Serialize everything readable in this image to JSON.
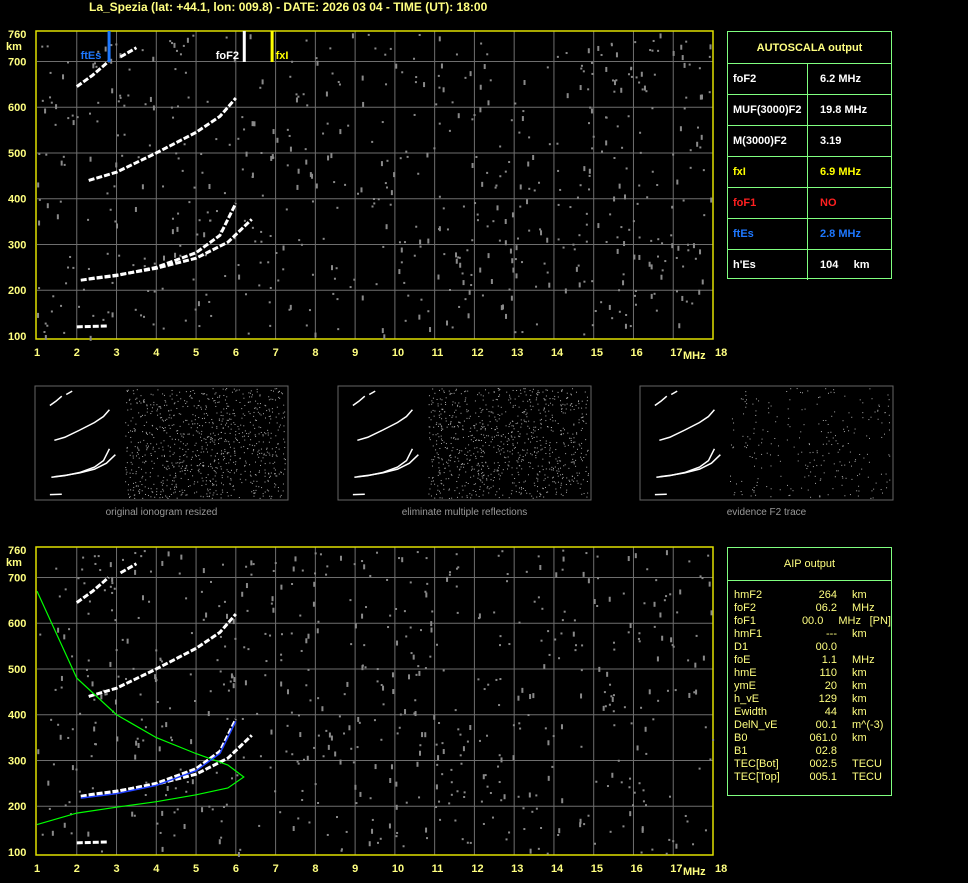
{
  "title": "La_Spezia (lat: +44.1, lon: 009.8) - DATE: 2026 03 04 - TIME (UT): 18:00",
  "chart_data": [
    {
      "type": "scatter",
      "title": "",
      "xlabel": "MHz",
      "ylabel": "km",
      "xlim": [
        1,
        18
      ],
      "ylim": [
        100,
        760
      ],
      "xticks": [
        "1",
        "2",
        "3",
        "4",
        "5",
        "6",
        "7",
        "8",
        "9",
        "10",
        "11",
        "12",
        "13",
        "14",
        "15",
        "16",
        "17",
        "18"
      ],
      "yticks": [
        "100",
        "200",
        "300",
        "400",
        "500",
        "600",
        "700",
        "760"
      ],
      "grid": true,
      "markers": [
        {
          "label": "ftEs",
          "freq": 2.8,
          "color": "#1e78ff"
        },
        {
          "label": "foF2",
          "freq": 6.2,
          "color": "#ffffff"
        },
        {
          "label": "fxI",
          "freq": 6.9,
          "color": "#ffff00"
        }
      ],
      "traces": [
        {
          "x": [
            2.1,
            3,
            4,
            5,
            5.6,
            6.0
          ],
          "y": [
            222,
            232,
            250,
            282,
            320,
            390
          ]
        },
        {
          "x": [
            2.3,
            3,
            4,
            5,
            5.8,
            6.4
          ],
          "y": [
            225,
            233,
            248,
            270,
            305,
            355
          ]
        },
        {
          "x": [
            2.3,
            3,
            4,
            5,
            5.6,
            6.0
          ],
          "y": [
            440,
            458,
            500,
            545,
            580,
            620
          ]
        },
        {
          "x": [
            2.0,
            2.8
          ],
          "y": [
            120,
            122
          ]
        },
        {
          "x": [
            2.0,
            2.4,
            2.8
          ],
          "y": [
            645,
            670,
            700
          ]
        },
        {
          "x": [
            3.1,
            3.5
          ],
          "y": [
            710,
            730
          ]
        }
      ]
    },
    {
      "type": "scatter",
      "title": "",
      "xlabel": "MHz",
      "ylabel": "km",
      "xlim": [
        1,
        18
      ],
      "ylim": [
        100,
        760
      ],
      "profile": {
        "color": "#00ff00",
        "x": [
          1,
          2,
          3,
          4,
          5,
          5.8,
          6.2,
          5.8,
          5,
          4,
          3,
          2,
          1
        ],
        "y": [
          670,
          480,
          400,
          350,
          315,
          290,
          264,
          240,
          225,
          210,
          198,
          185,
          160
        ]
      }
    }
  ],
  "thumbnails": [
    "original ionogram resized",
    "eliminate multiple reflections",
    "evidence F2 trace"
  ],
  "autoscala": {
    "title": "AUTOSCALA output",
    "rows": [
      {
        "k": "foF2",
        "v": "6.2 MHz",
        "color": "#ffffff"
      },
      {
        "k": "MUF(3000)F2",
        "v": "19.8 MHz",
        "color": "#ffffff"
      },
      {
        "k": "M(3000)F2",
        "v": "3.19",
        "color": "#ffffff"
      },
      {
        "k": "fxI",
        "v": "6.9 MHz",
        "color": "#ffff00"
      },
      {
        "k": "foF1",
        "v": "NO",
        "color": "#ff2020"
      },
      {
        "k": "ftEs",
        "v": "2.8 MHz",
        "color": "#1e78ff"
      },
      {
        "k": "h'Es",
        "v": "104     km",
        "color": "#ffffff"
      }
    ]
  },
  "aip": {
    "title": "AIP output",
    "rows": [
      [
        "hmF2",
        "264",
        "km",
        ""
      ],
      [
        "foF2",
        "06.2",
        "MHz",
        ""
      ],
      [
        "foF1",
        "00.0",
        "MHz",
        "[PN]"
      ],
      [
        "hmF1",
        "---",
        "km",
        ""
      ],
      [
        "D1",
        "00.0",
        "",
        ""
      ],
      [
        "foE",
        "1.1",
        "MHz",
        ""
      ],
      [
        "hmE",
        "110",
        "km",
        ""
      ],
      [
        "ymE",
        "20",
        "km",
        ""
      ],
      [
        "h_vE",
        "129",
        "km",
        ""
      ],
      [
        "Ewidth",
        "44",
        "km",
        ""
      ],
      [
        "DelN_vE",
        "00.1",
        "m^(-3)",
        ""
      ],
      [
        "B0",
        "061.0",
        "km",
        ""
      ],
      [
        "B1",
        "02.8",
        "",
        ""
      ],
      [
        "TEC[Bot]",
        "002.5",
        "TECU",
        ""
      ],
      [
        "TEC[Top]",
        "005.1",
        "TECU",
        ""
      ]
    ]
  }
}
